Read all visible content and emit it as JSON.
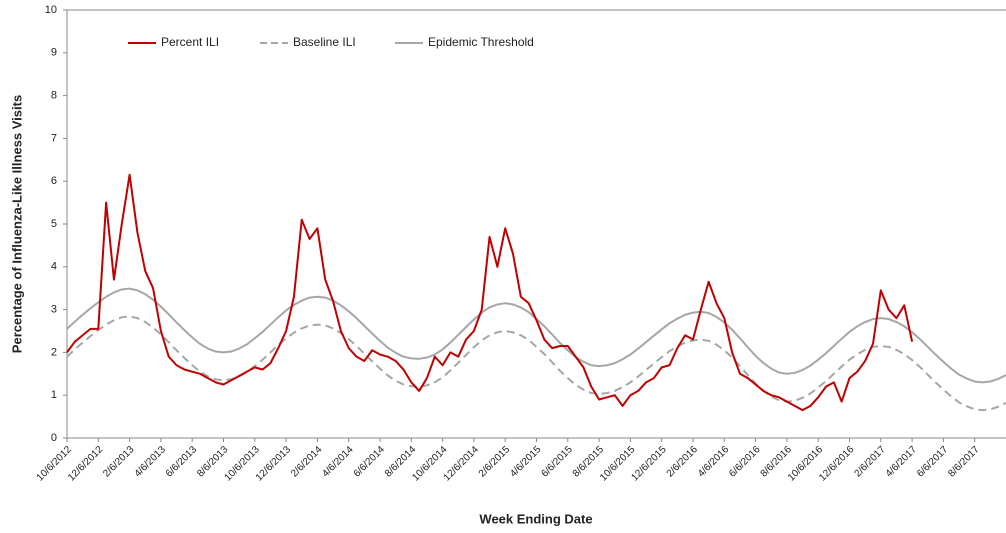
{
  "chart_data": {
    "type": "line",
    "x_label": "Week Ending Date",
    "y_label": "Percentage of Influenza-Like Illness Visits",
    "categories": [
      "10/6/2012",
      null,
      null,
      null,
      "12/6/2012",
      null,
      null,
      null,
      "2/6/2013",
      null,
      null,
      null,
      "4/6/2013",
      null,
      null,
      null,
      "6/6/2013",
      null,
      null,
      null,
      "8/6/2013",
      null,
      null,
      null,
      "10/6/2013",
      null,
      null,
      null,
      "12/6/2013",
      null,
      null,
      null,
      "2/6/2014",
      null,
      null,
      null,
      "4/6/2014",
      null,
      null,
      null,
      "6/6/2014",
      null,
      null,
      null,
      "8/6/2014",
      null,
      null,
      null,
      "10/6/2014",
      null,
      null,
      null,
      "12/6/2014",
      null,
      null,
      null,
      "2/6/2015",
      null,
      null,
      null,
      "4/6/2015",
      null,
      null,
      null,
      "6/6/2015",
      null,
      null,
      null,
      "8/6/2015",
      null,
      null,
      null,
      "10/6/2015",
      null,
      null,
      null,
      "12/6/2015",
      null,
      null,
      null,
      "2/6/2016",
      null,
      null,
      null,
      "4/6/2016",
      null,
      null,
      null,
      "6/6/2016",
      null,
      null,
      null,
      "8/6/2016",
      null,
      null,
      null,
      "10/6/2016",
      null,
      null,
      null,
      "12/6/2016",
      null,
      null,
      null,
      "2/6/2017",
      null,
      null,
      null,
      "4/6/2017",
      null,
      null,
      null,
      "6/6/2017",
      null,
      null,
      null,
      "8/6/2017",
      null,
      null,
      null,
      null
    ],
    "ylim": [
      0,
      10
    ],
    "yticks": [
      0,
      1,
      2,
      3,
      4,
      5,
      6,
      7,
      8,
      9,
      10
    ],
    "series": [
      {
        "name": "Percent ILI",
        "color": "#c00000",
        "dash": false,
        "values": [
          2.0,
          2.25,
          2.4,
          2.55,
          2.55,
          5.5,
          3.7,
          5.0,
          6.15,
          4.8,
          3.9,
          3.5,
          2.5,
          1.9,
          1.7,
          1.6,
          1.55,
          1.5,
          1.4,
          1.3,
          1.25,
          1.35,
          1.45,
          1.55,
          1.65,
          1.6,
          1.75,
          2.1,
          2.5,
          3.3,
          5.1,
          4.65,
          4.9,
          3.7,
          3.2,
          2.5,
          2.1,
          1.9,
          1.8,
          2.05,
          1.95,
          1.9,
          1.8,
          1.6,
          1.3,
          1.1,
          1.4,
          1.9,
          1.7,
          2.0,
          1.9,
          2.3,
          2.5,
          3.0,
          4.7,
          4.0,
          4.9,
          4.3,
          3.3,
          3.15,
          2.75,
          2.3,
          2.1,
          2.15,
          2.15,
          1.9,
          1.65,
          1.2,
          0.9,
          0.95,
          1.0,
          0.75,
          1.0,
          1.1,
          1.3,
          1.4,
          1.65,
          1.7,
          2.1,
          2.4,
          2.3,
          3.0,
          3.65,
          3.15,
          2.8,
          2.0,
          1.5,
          1.4,
          1.25,
          1.1,
          1.0,
          0.95,
          0.85,
          0.75,
          0.65,
          0.75,
          0.95,
          1.2,
          1.3,
          0.85,
          1.4,
          1.55,
          1.8,
          2.2,
          3.45,
          3.0,
          2.8,
          3.1,
          2.25,
          null,
          null,
          null,
          null,
          null,
          null,
          null,
          null,
          null,
          null,
          null,
          null
        ]
      },
      {
        "name": "Baseline ILI",
        "color": "#a6a6a6",
        "dash": true,
        "values": [
          1.9,
          2.07,
          2.23,
          2.38,
          2.52,
          2.65,
          2.75,
          2.82,
          2.84,
          2.8,
          2.71,
          2.58,
          2.42,
          2.24,
          2.05,
          1.87,
          1.7,
          1.55,
          1.44,
          1.37,
          1.35,
          1.37,
          1.44,
          1.54,
          1.68,
          1.83,
          2.0,
          2.17,
          2.33,
          2.46,
          2.56,
          2.63,
          2.65,
          2.63,
          2.56,
          2.45,
          2.31,
          2.15,
          1.97,
          1.79,
          1.62,
          1.46,
          1.34,
          1.25,
          1.21,
          1.2,
          1.23,
          1.3,
          1.42,
          1.58,
          1.76,
          1.94,
          2.12,
          2.28,
          2.4,
          2.47,
          2.5,
          2.47,
          2.4,
          2.29,
          2.13,
          1.96,
          1.77,
          1.57,
          1.4,
          1.24,
          1.13,
          1.05,
          1.03,
          1.05,
          1.1,
          1.19,
          1.3,
          1.44,
          1.59,
          1.74,
          1.89,
          2.03,
          2.14,
          2.23,
          2.28,
          2.3,
          2.27,
          2.18,
          2.05,
          1.88,
          1.68,
          1.47,
          1.27,
          1.1,
          0.97,
          0.88,
          0.85,
          0.87,
          0.94,
          1.04,
          1.18,
          1.33,
          1.5,
          1.67,
          1.83,
          1.96,
          2.06,
          2.13,
          2.15,
          2.13,
          2.06,
          1.96,
          1.82,
          1.66,
          1.48,
          1.3,
          1.13,
          0.97,
          0.83,
          0.74,
          0.67,
          0.65,
          0.67,
          0.73,
          0.82
        ]
      },
      {
        "name": "Epidemic Threshold",
        "color": "#a6a6a6",
        "dash": false,
        "values": [
          2.55,
          2.72,
          2.88,
          3.03,
          3.17,
          3.3,
          3.4,
          3.47,
          3.49,
          3.45,
          3.36,
          3.23,
          3.07,
          2.89,
          2.7,
          2.52,
          2.35,
          2.2,
          2.09,
          2.02,
          2.0,
          2.02,
          2.09,
          2.19,
          2.33,
          2.48,
          2.65,
          2.82,
          2.98,
          3.11,
          3.21,
          3.28,
          3.3,
          3.28,
          3.21,
          3.1,
          2.96,
          2.8,
          2.62,
          2.44,
          2.27,
          2.11,
          1.99,
          1.9,
          1.86,
          1.85,
          1.88,
          1.95,
          2.07,
          2.23,
          2.41,
          2.59,
          2.77,
          2.93,
          3.05,
          3.12,
          3.15,
          3.12,
          3.05,
          2.94,
          2.78,
          2.61,
          2.42,
          2.22,
          2.05,
          1.89,
          1.78,
          1.7,
          1.68,
          1.7,
          1.75,
          1.84,
          1.95,
          2.09,
          2.24,
          2.39,
          2.54,
          2.68,
          2.79,
          2.88,
          2.93,
          2.95,
          2.92,
          2.83,
          2.7,
          2.53,
          2.33,
          2.12,
          1.92,
          1.75,
          1.62,
          1.53,
          1.5,
          1.52,
          1.59,
          1.69,
          1.83,
          1.98,
          2.15,
          2.32,
          2.48,
          2.61,
          2.71,
          2.78,
          2.8,
          2.78,
          2.71,
          2.61,
          2.47,
          2.31,
          2.13,
          1.95,
          1.78,
          1.62,
          1.48,
          1.39,
          1.32,
          1.3,
          1.32,
          1.38,
          1.47
        ]
      }
    ]
  }
}
